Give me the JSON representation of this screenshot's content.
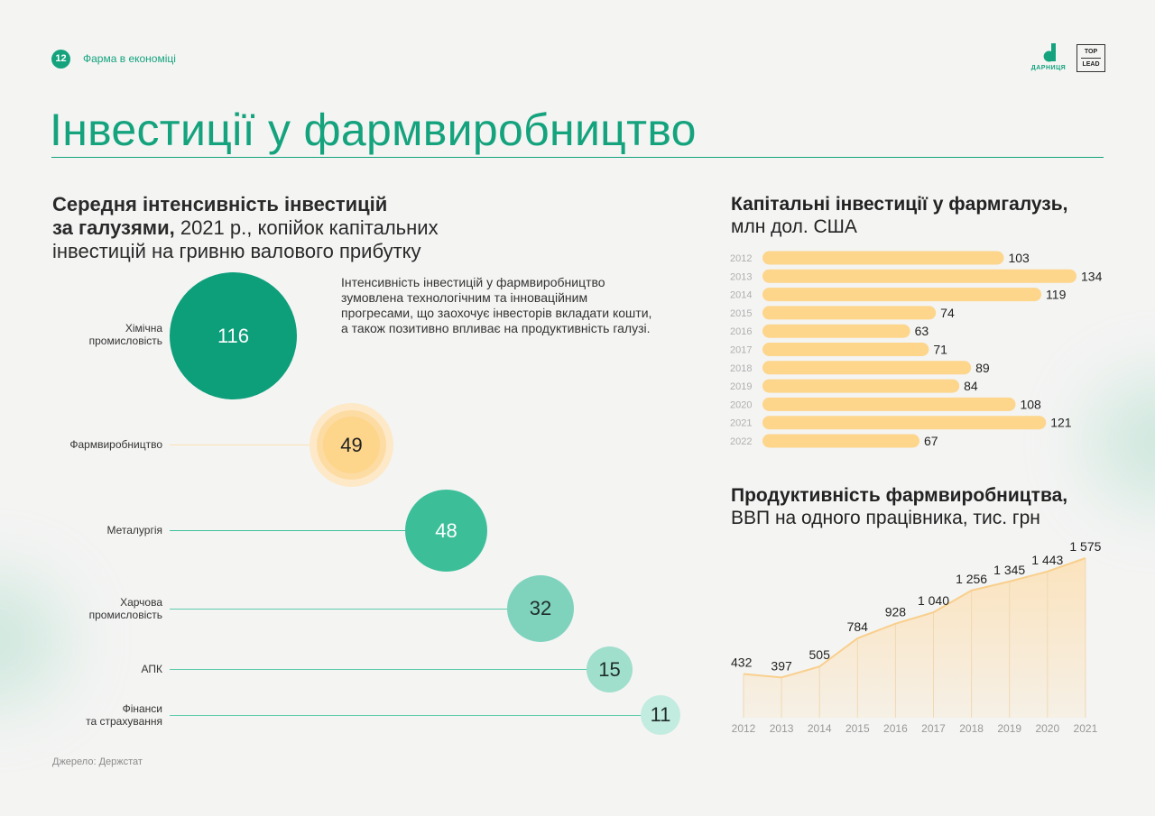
{
  "header": {
    "page_number": "12",
    "section": "Фарма в економіці",
    "logo_brand": "ДАРНИЦЯ",
    "logo_partner_line1": "TOP",
    "logo_partner_line2": "LEAD"
  },
  "title": "Інвестиції у фармвиробництво",
  "left": {
    "heading_bold_1": "Середня інтенсивність інвестицій",
    "heading_bold_2": "за галузями,",
    "heading_rest_1": " 2021 р., копійок капітальних",
    "heading_rest_2": "інвестицій на гривню валового прибутку",
    "description": "Інтенсивність інвестицій у фармвиробництво зумовлена технологічним та інноваційним прогресами, що заохочує інвесторів вкладати кошти, а також позитивно впливає на продуктивність галузі.",
    "bubbles": [
      {
        "label_1": "Хімічна",
        "label_2": "промисловість",
        "value": "116"
      },
      {
        "label_1": "Фармвиробництво",
        "label_2": "",
        "value": "49"
      },
      {
        "label_1": "Металургія",
        "label_2": "",
        "value": "48"
      },
      {
        "label_1": "Харчова",
        "label_2": "промисловість",
        "value": "32"
      },
      {
        "label_1": "АПК",
        "label_2": "",
        "value": "15"
      },
      {
        "label_1": "Фінанси",
        "label_2": "та страхування",
        "value": "11"
      }
    ],
    "source": "Джерело: Держстат"
  },
  "colors": {
    "brand": "#14a37d",
    "bar": "#fdd58b",
    "area": "#fbe3bd",
    "area_line": "#f9cf8c"
  },
  "chart_data": [
    {
      "type": "bar",
      "orientation": "horizontal",
      "title_bold": "Капітальні інвестиції у фармгалузь,",
      "title_rest": "млн дол. США",
      "categories": [
        "2012",
        "2013",
        "2014",
        "2015",
        "2016",
        "2017",
        "2018",
        "2019",
        "2020",
        "2021",
        "2022"
      ],
      "values": [
        103,
        134,
        119,
        74,
        63,
        71,
        89,
        84,
        108,
        121,
        67
      ],
      "xlim": [
        0,
        134
      ]
    },
    {
      "type": "area",
      "title_bold": "Продуктивність фармвиробництва,",
      "title_rest": "ВВП на одного працівника, тис. грн",
      "categories": [
        "2012",
        "2013",
        "2014",
        "2015",
        "2016",
        "2017",
        "2018",
        "2019",
        "2020",
        "2021"
      ],
      "values": [
        432,
        397,
        505,
        784,
        928,
        1040,
        1256,
        1345,
        1443,
        1575
      ],
      "labels": [
        "432",
        "397",
        "505",
        "784",
        "928",
        "1 040",
        "1 256",
        "1 345",
        "1 443",
        "1 575"
      ],
      "ylim": [
        0,
        1575
      ]
    }
  ]
}
